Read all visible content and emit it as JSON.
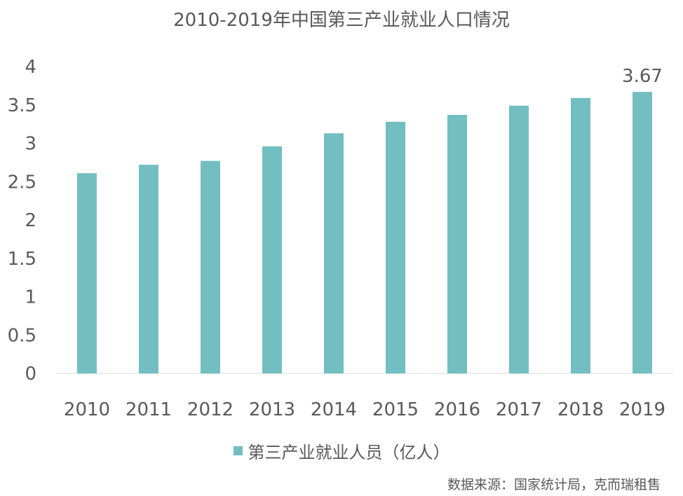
{
  "chart_data": {
    "type": "bar",
    "title": "2010-2019年中国第三产业就业人口情况",
    "categories": [
      "2010",
      "2011",
      "2012",
      "2013",
      "2014",
      "2015",
      "2016",
      "2017",
      "2018",
      "2019"
    ],
    "series": [
      {
        "name": "第三产业就业人员（亿人）",
        "values": [
          2.61,
          2.72,
          2.77,
          2.96,
          3.13,
          3.28,
          3.37,
          3.49,
          3.59,
          3.67
        ],
        "color": "#72BEC1"
      }
    ],
    "data_labels": [
      {
        "category": "2019",
        "text": "3.67"
      }
    ],
    "ylim": [
      0,
      4
    ],
    "yticks": [
      "0",
      "0.5",
      "1",
      "1.5",
      "2",
      "2.5",
      "3",
      "3.5",
      "4"
    ],
    "grid": false,
    "legend_position": "bottom",
    "axis_color": "#D9D9D9"
  },
  "source": "数据来源：国家统计局，克而瑞租售"
}
